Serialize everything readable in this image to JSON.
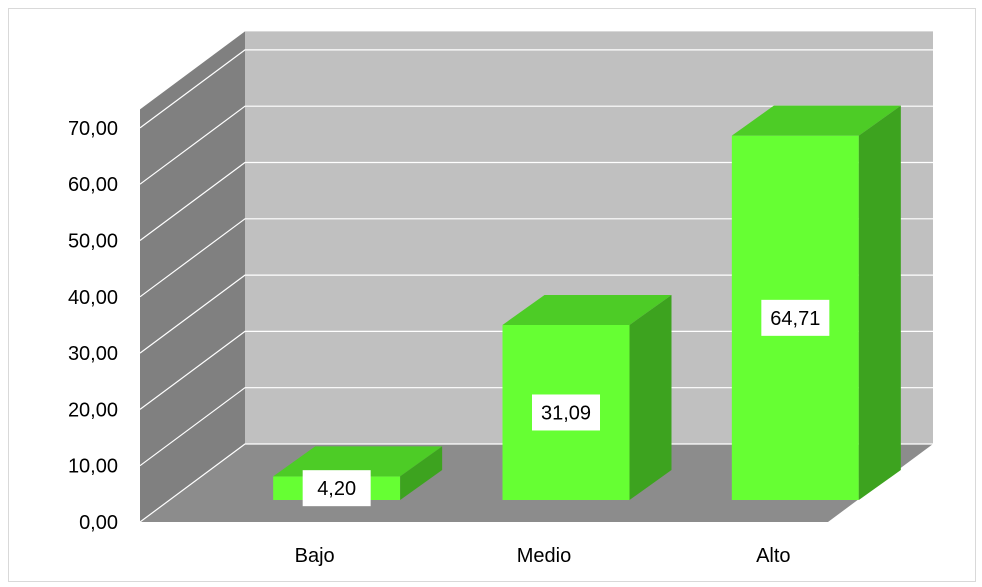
{
  "chart_data": {
    "type": "bar",
    "categories": [
      "Bajo",
      "Medio",
      "Alto"
    ],
    "values": [
      4.2,
      31.09,
      64.71
    ],
    "value_labels": [
      "4,20",
      "31,09",
      "64,71"
    ],
    "yticks": [
      0,
      10,
      20,
      30,
      40,
      50,
      60,
      70
    ],
    "ytick_labels": [
      "0,00",
      "10,00",
      "20,00",
      "30,00",
      "40,00",
      "50,00",
      "60,00",
      "70,00"
    ],
    "ylim": [
      0,
      70
    ],
    "title": "",
    "xlabel": "",
    "ylabel": "",
    "grid": true,
    "three_d": true,
    "colors": {
      "bar_front": "#66ff33",
      "bar_top": "#4dcc26",
      "bar_side": "#3da31f",
      "back_wall": "#c0c0c0",
      "side_wall": "#808080",
      "floor": "#8c8c8c",
      "gridline": "#ffffff"
    }
  }
}
